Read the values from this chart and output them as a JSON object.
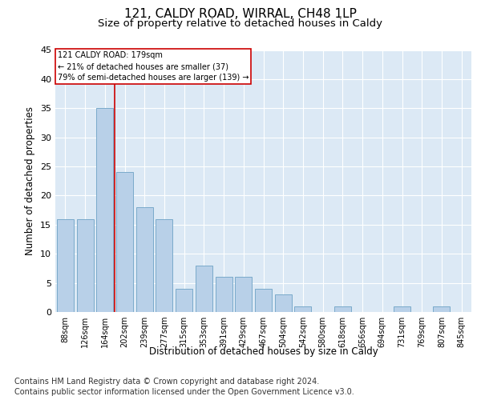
{
  "title1": "121, CALDY ROAD, WIRRAL, CH48 1LP",
  "title2": "Size of property relative to detached houses in Caldy",
  "xlabel": "Distribution of detached houses by size in Caldy",
  "ylabel": "Number of detached properties",
  "categories": [
    "88sqm",
    "126sqm",
    "164sqm",
    "202sqm",
    "239sqm",
    "277sqm",
    "315sqm",
    "353sqm",
    "391sqm",
    "429sqm",
    "467sqm",
    "504sqm",
    "542sqm",
    "580sqm",
    "618sqm",
    "656sqm",
    "694sqm",
    "731sqm",
    "769sqm",
    "807sqm",
    "845sqm"
  ],
  "values": [
    16,
    16,
    35,
    24,
    18,
    16,
    4,
    8,
    6,
    6,
    4,
    3,
    1,
    0,
    1,
    0,
    0,
    1,
    0,
    1,
    0
  ],
  "bar_color": "#b8d0e8",
  "bar_edge_color": "#7aaaca",
  "red_line_color": "#cc0000",
  "annotation_text1": "121 CALDY ROAD: 179sqm",
  "annotation_text2": "← 21% of detached houses are smaller (37)",
  "annotation_text3": "79% of semi-detached houses are larger (139) →",
  "annotation_box_color": "#ffffff",
  "annotation_box_edge": "#cc0000",
  "ylim": [
    0,
    45
  ],
  "yticks": [
    0,
    5,
    10,
    15,
    20,
    25,
    30,
    35,
    40,
    45
  ],
  "plot_bg_color": "#dce9f5",
  "footer1": "Contains HM Land Registry data © Crown copyright and database right 2024.",
  "footer2": "Contains public sector information licensed under the Open Government Licence v3.0.",
  "title_fontsize": 11,
  "subtitle_fontsize": 9.5,
  "axis_label_fontsize": 8.5,
  "tick_fontsize": 7,
  "annotation_fontsize": 7,
  "footer_fontsize": 7
}
